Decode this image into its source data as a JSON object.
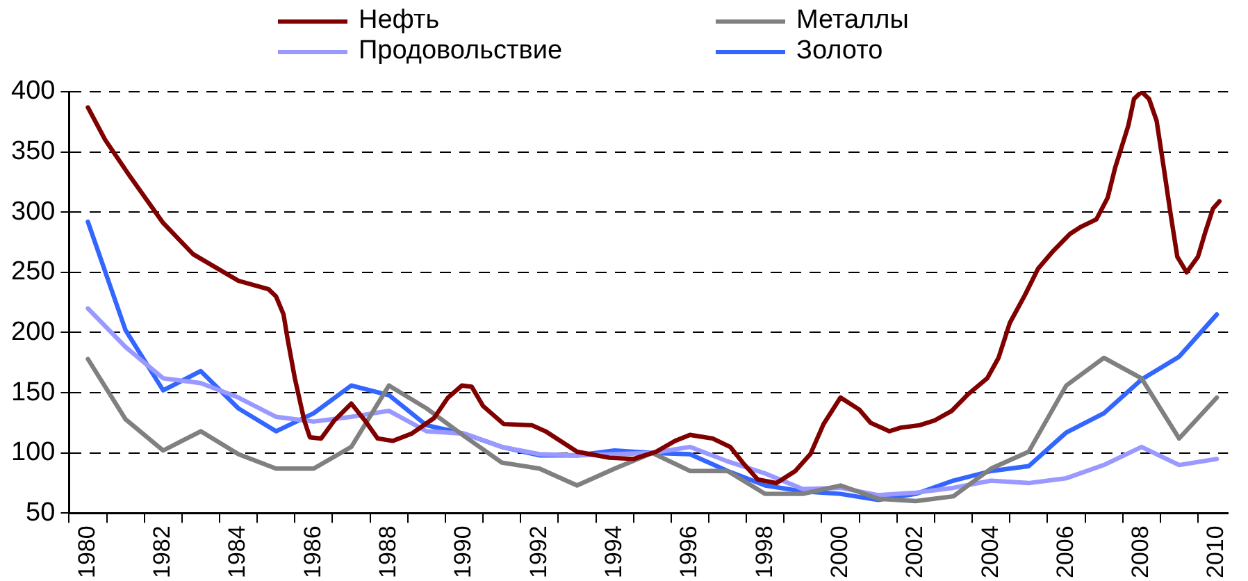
{
  "chart_data": {
    "type": "line",
    "legend": "top",
    "grid": "y",
    "line_style": "solid",
    "marker": "none",
    "xlim": [
      1979.5,
      2010.3
    ],
    "ylim": [
      50,
      400
    ],
    "yticks": [
      50,
      100,
      150,
      200,
      250,
      300,
      350,
      400
    ],
    "xticks": [
      {
        "value": 1979.5,
        "label": null
      },
      1980,
      {
        "value": 1980.5,
        "label": null
      },
      {
        "value": 1981.5,
        "label": null
      },
      1982,
      {
        "value": 1982.5,
        "label": null
      },
      {
        "value": 1983.5,
        "label": null
      },
      1984,
      {
        "value": 1984.5,
        "label": null
      },
      {
        "value": 1985.5,
        "label": null
      },
      1986,
      {
        "value": 1986.5,
        "label": null
      },
      {
        "value": 1987.5,
        "label": null
      },
      1988,
      {
        "value": 1988.5,
        "label": null
      },
      {
        "value": 1989.5,
        "label": null
      },
      1990,
      {
        "value": 1990.5,
        "label": null
      },
      {
        "value": 1991.5,
        "label": null
      },
      1992,
      {
        "value": 1992.5,
        "label": null
      },
      {
        "value": 1993.5,
        "label": null
      },
      1994,
      {
        "value": 1994.5,
        "label": null
      },
      {
        "value": 1995.5,
        "label": null
      },
      1996,
      {
        "value": 1996.5,
        "label": null
      },
      {
        "value": 1997.5,
        "label": null
      },
      1998,
      {
        "value": 1998.5,
        "label": null
      },
      {
        "value": 1999.5,
        "label": null
      },
      2000,
      {
        "value": 2000.5,
        "label": null
      },
      {
        "value": 2001.5,
        "label": null
      },
      2002,
      {
        "value": 2002.5,
        "label": null
      },
      {
        "value": 2003.5,
        "label": null
      },
      2004,
      {
        "value": 2004.5,
        "label": null
      },
      {
        "value": 2005.5,
        "label": null
      },
      2006,
      {
        "value": 2006.5,
        "label": null
      },
      {
        "value": 2007.5,
        "label": null
      },
      2008,
      {
        "value": 2008.5,
        "label": null
      },
      {
        "value": 2009.5,
        "label": null
      },
      2010
    ],
    "series": [
      {
        "name": "Нефть",
        "color": "#800000",
        "x": [
          1980.0,
          1980.46,
          1981.09,
          1982.0,
          1982.8,
          1984.0,
          1984.8,
          1985.0,
          1985.2,
          1985.3,
          1985.5,
          1985.75,
          1985.9,
          1986.2,
          1986.55,
          1987.0,
          1987.36,
          1987.7,
          1988.1,
          1988.6,
          1989.2,
          1989.57,
          1989.94,
          1990.2,
          1990.5,
          1991.05,
          1991.8,
          1992.16,
          1993.0,
          1993.86,
          1994.5,
          1995.1,
          1995.6,
          1996.0,
          1996.6,
          1997.07,
          1997.4,
          1997.8,
          1998.3,
          1998.8,
          1999.2,
          1999.55,
          2000.0,
          2000.5,
          2000.8,
          2001.3,
          2001.6,
          2002.1,
          2002.5,
          2002.96,
          2003.4,
          2003.9,
          2004.2,
          2004.5,
          2004.9,
          2005.25,
          2005.66,
          2006.1,
          2006.4,
          2006.8,
          2007.1,
          2007.3,
          2007.65,
          2007.8,
          2008.0,
          2008.2,
          2008.4,
          2008.6,
          2008.76,
          2008.95,
          2009.2,
          2009.5,
          2009.7,
          2009.9,
          2010.07
        ],
        "values": [
          387,
          360,
          331,
          291,
          265,
          243,
          236,
          230,
          215,
          196,
          162,
          127,
          113,
          112,
          127,
          141,
          127,
          112,
          110,
          116,
          129,
          146,
          156,
          155,
          139,
          124,
          123,
          118,
          101,
          96,
          95,
          101,
          110,
          115,
          112,
          105,
          92,
          78,
          75,
          85,
          99,
          124,
          146,
          136,
          125,
          118,
          121,
          123,
          127,
          135,
          149,
          162,
          179,
          208,
          231,
          253,
          268,
          282,
          288,
          294,
          312,
          337,
          372,
          394,
          400,
          394,
          376,
          335,
          301,
          263,
          250,
          263,
          284,
          303,
          309
        ]
      },
      {
        "name": "Металлы",
        "color": "#808080",
        "x": [
          1980,
          1981,
          1982,
          1983,
          1984,
          1985,
          1986,
          1987,
          1988,
          1989,
          1990,
          1991,
          1992,
          1993,
          1994,
          1995,
          1996,
          1997,
          1998,
          1999,
          2000,
          2001,
          2002,
          2003,
          2004,
          2005,
          2006,
          2007,
          2008,
          2009,
          2010
        ],
        "values": [
          178,
          128,
          102,
          118,
          99,
          87,
          87,
          105,
          156,
          137,
          114,
          92,
          87,
          73,
          87,
          100,
          85,
          85,
          66,
          66,
          73,
          62,
          60,
          64,
          87,
          101,
          156,
          179,
          162,
          112,
          146
        ]
      },
      {
        "name": "Продовольствие",
        "color": "#9999ff",
        "x": [
          1980,
          1981,
          1982,
          1983,
          1984,
          1985,
          1986,
          1987,
          1988,
          1989,
          1990,
          1991,
          1992,
          1993,
          1994,
          1995,
          1996,
          1997,
          1998,
          1999,
          2000,
          2001,
          2002,
          2003,
          2004,
          2005,
          2006,
          2007,
          2008,
          2009,
          2010
        ],
        "values": [
          220,
          188,
          162,
          158,
          146,
          130,
          126,
          130,
          135,
          118,
          116,
          105,
          99,
          98,
          99,
          100,
          105,
          93,
          83,
          70,
          71,
          65,
          67,
          71,
          77,
          75,
          79,
          90,
          105,
          90,
          95
        ]
      },
      {
        "name": "Золото",
        "color": "#3366ff",
        "x": [
          1980,
          1981,
          1982,
          1983,
          1984,
          1985,
          1986,
          1987,
          1988,
          1989,
          1990,
          1991,
          1992,
          1993,
          1994,
          1995,
          1996,
          1997,
          1998,
          1999,
          2000,
          2001,
          2002,
          2003,
          2004,
          2005,
          2006,
          2007,
          2008,
          2009,
          2010
        ],
        "values": [
          292,
          202,
          152,
          168,
          137,
          118,
          133,
          156,
          148,
          123,
          116,
          105,
          98,
          98,
          102,
          100,
          99,
          85,
          73,
          68,
          66,
          61,
          66,
          77,
          85,
          89,
          117,
          133,
          161,
          180,
          215
        ]
      }
    ]
  }
}
